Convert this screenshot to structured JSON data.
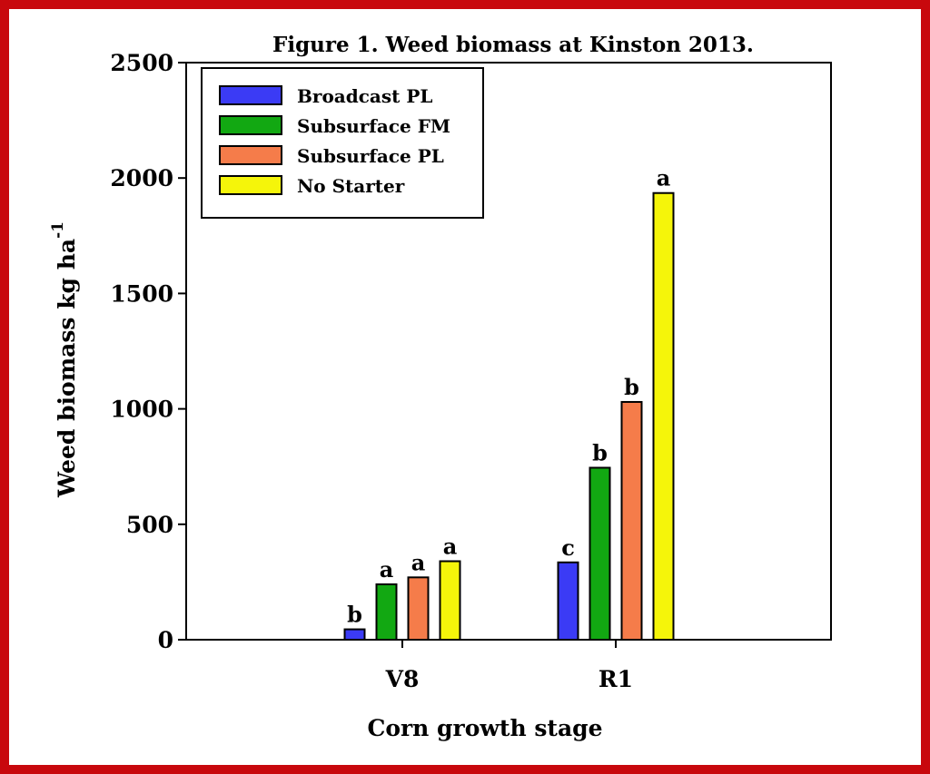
{
  "chart_data": {
    "type": "bar",
    "title": "Figure 1. Weed biomass at Kinston 2013.",
    "xlabel": "Corn growth stage",
    "ylabel": "Weed biomass kg ha",
    "ylabel_superscript": "-1",
    "categories": [
      "V8",
      "R1"
    ],
    "ylim": [
      0,
      2500
    ],
    "yticks": [
      "0",
      "500",
      "1000",
      "1500",
      "2000",
      "2500"
    ],
    "grid": false,
    "legend_position": "top-left",
    "series": [
      {
        "name": "Broadcast PL",
        "color": "#3b3bf5",
        "values": [
          45,
          335
        ],
        "letters": [
          "b",
          "c"
        ]
      },
      {
        "name": "Subsurface FM",
        "color": "#12a812",
        "values": [
          240,
          745
        ],
        "letters": [
          "a",
          "b"
        ]
      },
      {
        "name": "Subsurface PL",
        "color": "#f57c4a",
        "values": [
          270,
          1030
        ],
        "letters": [
          "a",
          "b"
        ]
      },
      {
        "name": "No Starter",
        "color": "#f5f50a",
        "values": [
          340,
          1935
        ],
        "letters": [
          "a",
          "a"
        ]
      }
    ]
  }
}
